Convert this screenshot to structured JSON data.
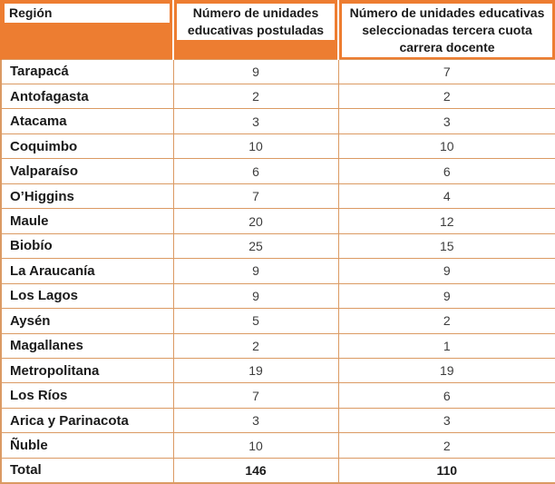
{
  "table": {
    "columns": [
      {
        "label": "Región"
      },
      {
        "label": "Número de unidades educativas postuladas"
      },
      {
        "label": "Número de unidades educativas seleccionadas tercera cuota carrera docente"
      }
    ],
    "rows": [
      {
        "region": "Tarapacá",
        "postuladas": "9",
        "seleccionadas": "7"
      },
      {
        "region": "Antofagasta",
        "postuladas": "2",
        "seleccionadas": "2"
      },
      {
        "region": "Atacama",
        "postuladas": "3",
        "seleccionadas": "3"
      },
      {
        "region": "Coquimbo",
        "postuladas": "10",
        "seleccionadas": "10"
      },
      {
        "region": "Valparaíso",
        "postuladas": "6",
        "seleccionadas": "6"
      },
      {
        "region": "O’Higgins",
        "postuladas": "7",
        "seleccionadas": "4"
      },
      {
        "region": "Maule",
        "postuladas": "20",
        "seleccionadas": "12"
      },
      {
        "region": "Biobío",
        "postuladas": "25",
        "seleccionadas": "15"
      },
      {
        "region": "La Araucanía",
        "postuladas": "9",
        "seleccionadas": "9"
      },
      {
        "region": "Los Lagos",
        "postuladas": "9",
        "seleccionadas": "9"
      },
      {
        "region": "Aysén",
        "postuladas": "5",
        "seleccionadas": "2"
      },
      {
        "region": "Magallanes",
        "postuladas": "2",
        "seleccionadas": "1"
      },
      {
        "region": "Metropolitana",
        "postuladas": "19",
        "seleccionadas": "19"
      },
      {
        "region": "Los Ríos",
        "postuladas": "7",
        "seleccionadas": "6"
      },
      {
        "region": "Arica y Parinacota",
        "postuladas": "3",
        "seleccionadas": "3"
      },
      {
        "region": "Ñuble",
        "postuladas": "10",
        "seleccionadas": "2"
      }
    ],
    "total": {
      "label": "Total",
      "postuladas": "146",
      "seleccionadas": "110"
    }
  },
  "colors": {
    "header_orange": "#ED7D31",
    "grid_line": "#DB9A63",
    "header_divider": "#FFFFFF"
  }
}
